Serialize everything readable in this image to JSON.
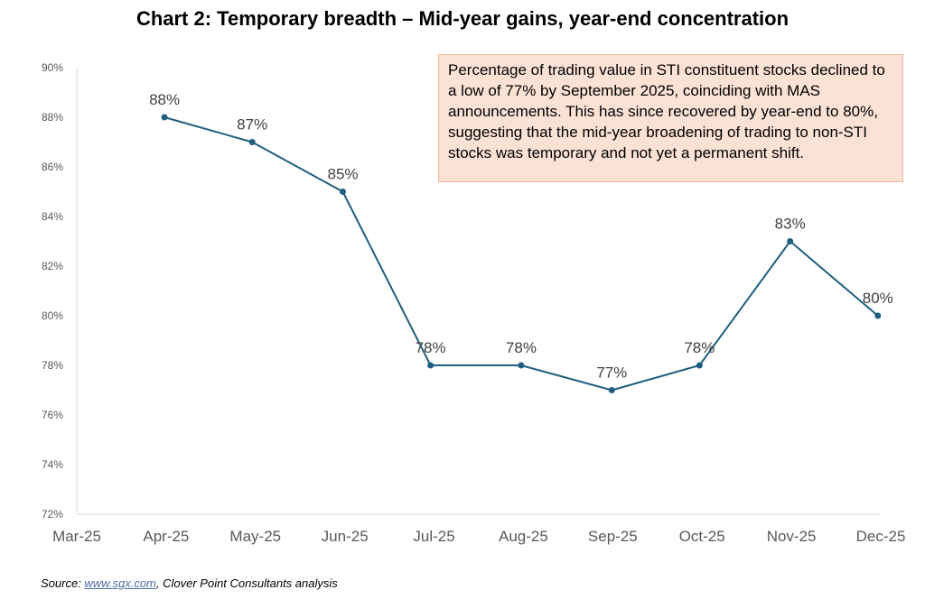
{
  "title": "Chart 2: Temporary breadth – Mid-year gains, year-end concentration",
  "annotation": "Percentage of trading value in STI constituent stocks declined to a low of 77% by September 2025, coinciding with MAS announcements.  This has since recovered by year-end to 80%, suggesting that the mid-year broadening of trading to non-STI stocks was temporary and not yet a permanent shift.",
  "source": {
    "prefix": "Source: ",
    "link": "www.sgx.com",
    "suffix": ", Clover Point Consultants analysis"
  },
  "colors": {
    "line": "#1f5f7f",
    "annotation_bg": "#fbe2d5",
    "annotation_border": "#f2b899"
  },
  "chart_data": {
    "type": "line",
    "title": "Chart 2: Temporary breadth – Mid-year gains, year-end concentration",
    "xlabel": "",
    "ylabel": "",
    "x_ticks": [
      "Mar-25",
      "Apr-25",
      "May-25",
      "Jun-25",
      "Jul-25",
      "Aug-25",
      "Sep-25",
      "Oct-25",
      "Nov-25",
      "Dec-25"
    ],
    "y_ticks": [
      "72%",
      "74%",
      "76%",
      "78%",
      "80%",
      "82%",
      "84%",
      "86%",
      "88%",
      "90%"
    ],
    "ylim": [
      72,
      90
    ],
    "grid": false,
    "series": [
      {
        "points": [
          {
            "x": "2025-03-31",
            "y": 88,
            "label": "88%"
          },
          {
            "x": "2025-04-30",
            "y": 87,
            "label": "87%"
          },
          {
            "x": "2025-05-31",
            "y": 85,
            "label": "85%"
          },
          {
            "x": "2025-06-30",
            "y": 78,
            "label": "78%"
          },
          {
            "x": "2025-07-31",
            "y": 78,
            "label": "78%"
          },
          {
            "x": "2025-08-31",
            "y": 77,
            "label": "77%"
          },
          {
            "x": "2025-09-30",
            "y": 78,
            "label": "78%"
          },
          {
            "x": "2025-10-31",
            "y": 83,
            "label": "83%"
          },
          {
            "x": "2025-11-30",
            "y": 80,
            "label": "80%"
          }
        ]
      }
    ]
  }
}
